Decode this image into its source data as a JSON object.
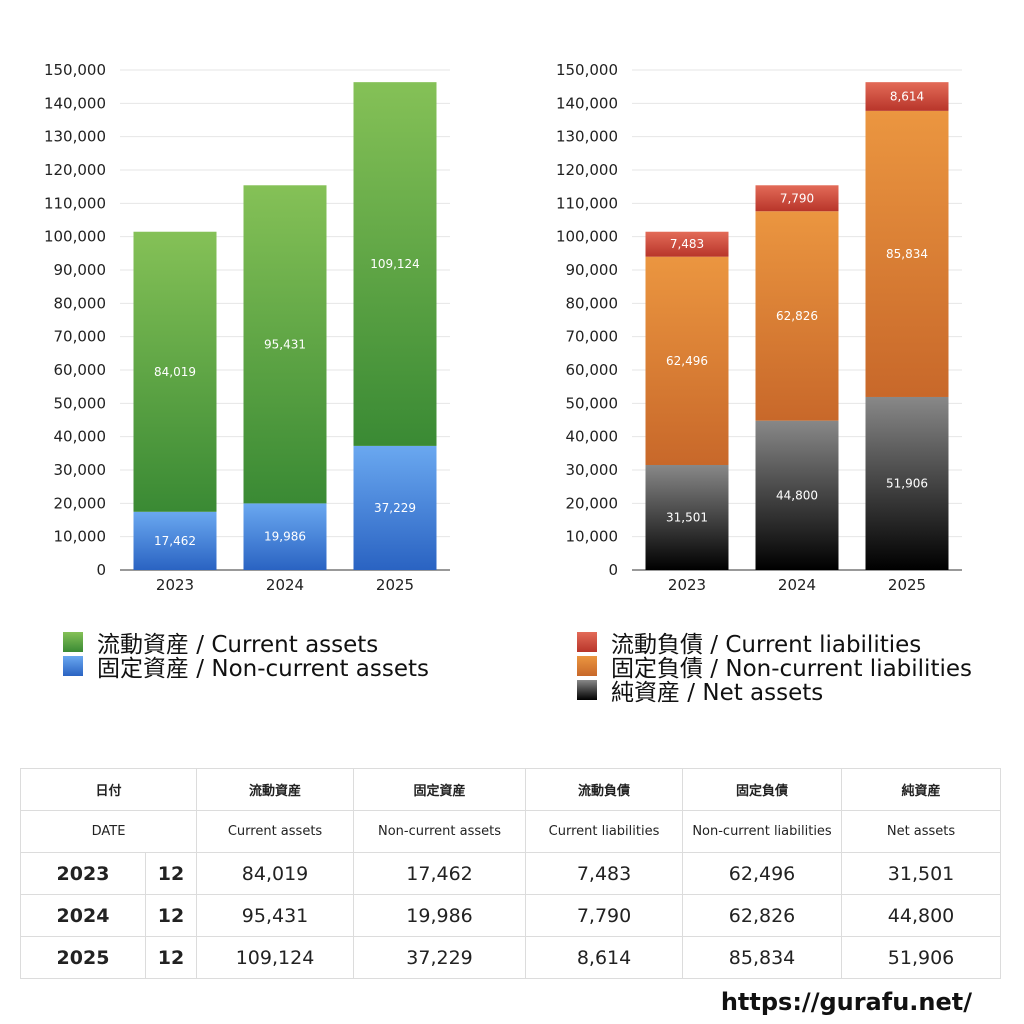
{
  "colors": {
    "current_assets": [
      "#85c157",
      "#3a8a34"
    ],
    "noncurrent_assets": [
      "#6aa8f0",
      "#2a63c2"
    ],
    "current_liabilities": [
      "#e36b58",
      "#b8352a"
    ],
    "noncurrent_liabilities": [
      "#eb9640",
      "#c8682a"
    ],
    "net_assets": [
      "#888888",
      "#000000"
    ],
    "grid": "#e6e6e6",
    "axis_text": "#222222"
  },
  "chart_data": [
    {
      "type": "bar",
      "stacked": true,
      "categories": [
        "2023",
        "2024",
        "2025"
      ],
      "ylim": [
        0,
        150000
      ],
      "yticks": [
        "0",
        "10,000",
        "20,000",
        "30,000",
        "40,000",
        "50,000",
        "60,000",
        "70,000",
        "80,000",
        "90,000",
        "100,000",
        "110,000",
        "120,000",
        "130,000",
        "140,000",
        "150,000"
      ],
      "grid": true,
      "legend_position": "bottom",
      "series": [
        {
          "name": "固定資産 / Non-current assets",
          "values": [
            17462,
            19986,
            37229
          ],
          "labels": [
            "17,462",
            "19,986",
            "37,229"
          ],
          "color_key": "noncurrent_assets"
        },
        {
          "name": "流動資産 / Current assets",
          "values": [
            84019,
            95431,
            109124
          ],
          "labels": [
            "84,019",
            "95,431",
            "109,124"
          ],
          "color_key": "current_assets"
        }
      ]
    },
    {
      "type": "bar",
      "stacked": true,
      "categories": [
        "2023",
        "2024",
        "2025"
      ],
      "ylim": [
        0,
        150000
      ],
      "yticks": [
        "0",
        "10,000",
        "20,000",
        "30,000",
        "40,000",
        "50,000",
        "60,000",
        "70,000",
        "80,000",
        "90,000",
        "100,000",
        "110,000",
        "120,000",
        "130,000",
        "140,000",
        "150,000"
      ],
      "grid": true,
      "legend_position": "bottom",
      "series": [
        {
          "name": "純資産 / Net assets",
          "values": [
            31501,
            44800,
            51906
          ],
          "labels": [
            "31,501",
            "44,800",
            "51,906"
          ],
          "color_key": "net_assets"
        },
        {
          "name": "固定負債 / Non-current liabilities",
          "values": [
            62496,
            62826,
            85834
          ],
          "labels": [
            "62,496",
            "62,826",
            "85,834"
          ],
          "color_key": "noncurrent_liabilities"
        },
        {
          "name": "流動負債 / Current liabilities",
          "values": [
            7483,
            7790,
            8614
          ],
          "labels": [
            "7,483",
            "7,790",
            "8,614"
          ],
          "color_key": "current_liabilities"
        }
      ]
    }
  ],
  "legends": {
    "left": [
      {
        "label": "流動資産 / Current assets",
        "color_key": "current_assets"
      },
      {
        "label": "固定資産 / Non-current assets",
        "color_key": "noncurrent_assets"
      }
    ],
    "right": [
      {
        "label": "流動負債 / Current liabilities",
        "color_key": "current_liabilities"
      },
      {
        "label": "固定負債 / Non-current liabilities",
        "color_key": "noncurrent_liabilities"
      },
      {
        "label": "純資産 / Net assets",
        "color_key": "net_assets"
      }
    ]
  },
  "table": {
    "header_jp": {
      "date": "日付",
      "ca": "流動資産",
      "nca": "固定資産",
      "cl": "流動負債",
      "ncl": "固定負債",
      "na": "純資産"
    },
    "header_en": {
      "date": "DATE",
      "ca": "Current assets",
      "nca": "Non-current assets",
      "cl": "Current liabilities",
      "ncl": "Non-current liabilities",
      "na": "Net assets"
    },
    "rows": [
      {
        "year": "2023",
        "month": "12",
        "ca": "84,019",
        "nca": "17,462",
        "cl": "7,483",
        "ncl": "62,496",
        "na": "31,501"
      },
      {
        "year": "2024",
        "month": "12",
        "ca": "95,431",
        "nca": "19,986",
        "cl": "7,790",
        "ncl": "62,826",
        "na": "44,800"
      },
      {
        "year": "2025",
        "month": "12",
        "ca": "109,124",
        "nca": "37,229",
        "cl": "8,614",
        "ncl": "85,834",
        "na": "51,906"
      }
    ]
  },
  "footer": {
    "url": "https://gurafu.net/"
  }
}
